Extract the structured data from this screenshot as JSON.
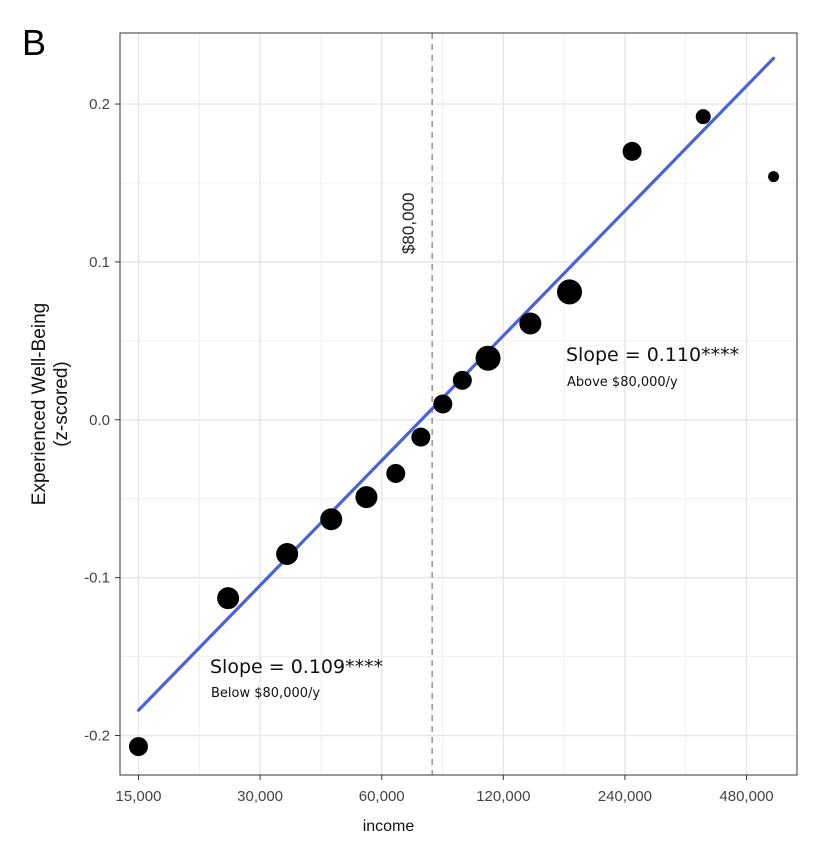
{
  "panel_label": "B",
  "chart_data": {
    "type": "scatter",
    "xlabel": "income",
    "ylabel_line1": "Experienced Well-Being",
    "ylabel_line2": "(z-scored)",
    "x_scale": "log2",
    "xlim": [
      13500,
      640000
    ],
    "ylim": [
      -0.225,
      0.245
    ],
    "x_ticks": [
      15000,
      30000,
      60000,
      120000,
      240000,
      480000
    ],
    "x_tick_labels": [
      "15,000",
      "30,000",
      "60,000",
      "120,000",
      "240,000",
      "480,000"
    ],
    "y_ticks": [
      0.2,
      0.1,
      0.0,
      -0.1,
      -0.2
    ],
    "y_tick_labels": [
      "0.2",
      "0.1",
      "0.0",
      "-0.1",
      "-0.2"
    ],
    "grid": true,
    "points": [
      {
        "x": 15000,
        "y": -0.207,
        "size": 2
      },
      {
        "x": 25000,
        "y": -0.113,
        "size": 3
      },
      {
        "x": 35000,
        "y": -0.085,
        "size": 3
      },
      {
        "x": 45000,
        "y": -0.063,
        "size": 3
      },
      {
        "x": 55000,
        "y": -0.049,
        "size": 3
      },
      {
        "x": 65000,
        "y": -0.034,
        "size": 2
      },
      {
        "x": 75000,
        "y": -0.011,
        "size": 2
      },
      {
        "x": 85000,
        "y": 0.01,
        "size": 2
      },
      {
        "x": 95000,
        "y": 0.025,
        "size": 2
      },
      {
        "x": 110000,
        "y": 0.039,
        "size": 4
      },
      {
        "x": 140000,
        "y": 0.061,
        "size": 3
      },
      {
        "x": 175000,
        "y": 0.081,
        "size": 4
      },
      {
        "x": 250000,
        "y": 0.17,
        "size": 2
      },
      {
        "x": 375000,
        "y": 0.192,
        "size": 1
      },
      {
        "x": 560000,
        "y": 0.154,
        "size": 0
      }
    ],
    "fit_line": {
      "x": [
        15000,
        560000
      ],
      "y": [
        -0.184,
        0.229
      ],
      "color": "#4a63d9"
    },
    "point_color": "#000000",
    "reference_line": {
      "x": 80000,
      "label": "$80,000",
      "style": "dashed",
      "color": "#9a9a9a"
    },
    "annotations": [
      {
        "main": "Slope = 0.110****",
        "sub": "Above $80,000/y"
      },
      {
        "main": "Slope = 0.109****",
        "sub": "Below $80,000/y"
      }
    ]
  }
}
